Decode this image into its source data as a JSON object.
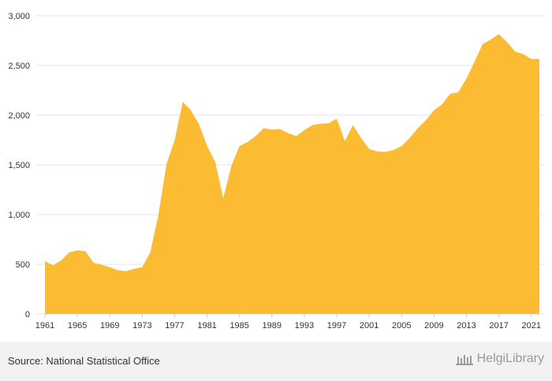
{
  "chart_data": {
    "type": "area",
    "color": "#fbbc33",
    "x": [
      1961,
      1962,
      1963,
      1964,
      1965,
      1966,
      1967,
      1968,
      1969,
      1970,
      1971,
      1972,
      1973,
      1974,
      1975,
      1976,
      1977,
      1978,
      1979,
      1980,
      1981,
      1982,
      1983,
      1984,
      1985,
      1986,
      1987,
      1988,
      1989,
      1990,
      1991,
      1992,
      1993,
      1994,
      1995,
      1996,
      1997,
      1998,
      1999,
      2000,
      2001,
      2002,
      2003,
      2004,
      2005,
      2006,
      2007,
      2008,
      2009,
      2010,
      2011,
      2012,
      2013,
      2014,
      2015,
      2016,
      2017,
      2018,
      2019,
      2020,
      2021,
      2022
    ],
    "values": [
      530,
      490,
      540,
      620,
      640,
      630,
      515,
      495,
      470,
      440,
      430,
      455,
      470,
      620,
      1000,
      1510,
      1750,
      2135,
      2050,
      1910,
      1690,
      1530,
      1165,
      1490,
      1690,
      1730,
      1790,
      1870,
      1855,
      1860,
      1820,
      1790,
      1850,
      1900,
      1915,
      1920,
      1965,
      1740,
      1900,
      1770,
      1660,
      1635,
      1630,
      1650,
      1690,
      1770,
      1870,
      1950,
      2050,
      2110,
      2215,
      2230,
      2370,
      2540,
      2715,
      2760,
      2815,
      2735,
      2640,
      2615,
      2565,
      2565
    ],
    "ylim": [
      0,
      3000
    ],
    "yticks": [
      0,
      500,
      1000,
      1500,
      2000,
      2500,
      3000
    ],
    "ytick_labels": [
      "0",
      "500",
      "1,000",
      "1,500",
      "2,000",
      "2,500",
      "3,000"
    ],
    "xticks": [
      1961,
      1965,
      1969,
      1973,
      1977,
      1981,
      1985,
      1989,
      1993,
      1997,
      2001,
      2005,
      2009,
      2013,
      2017,
      2021
    ],
    "grid": true,
    "title": "",
    "xlabel": "",
    "ylabel": ""
  },
  "footer": {
    "source": "Source: National Statistical Office",
    "brand": "HelgiLibrary"
  }
}
